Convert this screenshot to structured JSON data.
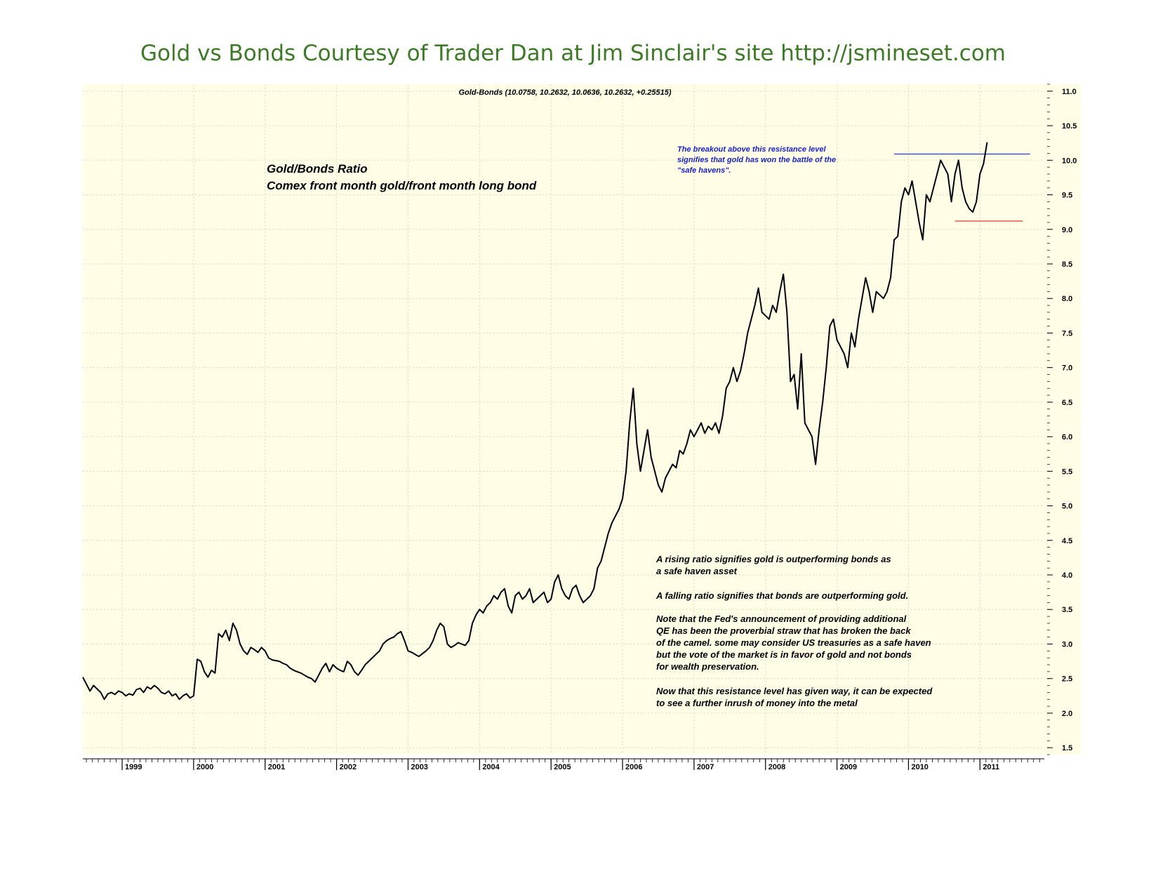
{
  "page": {
    "title": "Gold vs Bonds Courtesy of Trader Dan at Jim Sinclair's site http://jsmineset.com"
  },
  "chart_data": {
    "type": "line",
    "header": "Gold-Bonds (10.0758, 10.2632, 10.0636, 10.2632, +0.25515)",
    "title_lines": [
      "Gold/Bonds Ratio",
      "Comex front month gold/front month long bond"
    ],
    "ylim": [
      1.4,
      11.1
    ],
    "xlim": [
      1998.45,
      2011.9
    ],
    "y_ticks": [
      "1.5",
      "2.0",
      "2.5",
      "3.0",
      "3.5",
      "4.0",
      "4.5",
      "5.0",
      "5.5",
      "6.0",
      "6.5",
      "7.0",
      "7.5",
      "8.0",
      "8.5",
      "9.0",
      "9.5",
      "10.0",
      "10.5",
      "11.0"
    ],
    "x_ticks": [
      "1999",
      "2000",
      "2001",
      "2002",
      "2003",
      "2004",
      "2005",
      "2006",
      "2007",
      "2008",
      "2009",
      "2010",
      "2011"
    ],
    "grid": true,
    "colors": {
      "background": "#fffde6",
      "line": "#000000",
      "resistance": "#1f2fbf",
      "support": "#e02020",
      "title": "#3d7a25",
      "annotation_blue": "#1a22cc"
    },
    "resistance_line": {
      "x": [
        2009.8,
        2011.7
      ],
      "y": 10.09
    },
    "support_line": {
      "x": [
        2010.65,
        2011.6
      ],
      "y": 9.12
    },
    "annotations": {
      "breakout": [
        "The breakout above this resistance level",
        "signifies that gold has won the battle of the",
        "\"safe havens\"."
      ],
      "rising": [
        "A rising ratio signifies gold is outperforming bonds as",
        "a safe haven asset"
      ],
      "falling": [
        "A falling ratio signifies that bonds are outperforming gold."
      ],
      "note": [
        "Note that the Fed's announcement of providing additional",
        "QE has been the proverbial straw that has broken the back",
        "of the camel. some may consider US treasuries as a safe haven",
        "but the vote of the market is in favor of gold and not bonds",
        "for wealth preservation."
      ],
      "now": [
        "Now that this resistance level has given way, it can be expected",
        "to see a further inrush of money into the metal"
      ]
    },
    "series": [
      {
        "x": [
          1998.45,
          1998.5,
          1998.55,
          1998.6,
          1998.65,
          1998.7,
          1998.75,
          1998.8,
          1998.85,
          1998.9,
          1998.95,
          1999.0,
          1999.05,
          1999.1,
          1999.15,
          1999.2,
          1999.25,
          1999.3,
          1999.35,
          1999.4,
          1999.45,
          1999.5,
          1999.55,
          1999.6,
          1999.65,
          1999.7,
          1999.75,
          1999.8,
          1999.85,
          1999.9,
          1999.95,
          2000.0,
          2000.05,
          2000.1,
          2000.15,
          2000.2,
          2000.25,
          2000.3,
          2000.35,
          2000.4,
          2000.45,
          2000.5,
          2000.55,
          2000.6,
          2000.65,
          2000.7,
          2000.75,
          2000.8,
          2000.85,
          2000.9,
          2000.95,
          2001.0,
          2001.05,
          2001.1,
          2001.15,
          2001.2,
          2001.25,
          2001.3,
          2001.35,
          2001.4,
          2001.45,
          2001.5,
          2001.55,
          2001.6,
          2001.65,
          2001.7,
          2001.75,
          2001.8,
          2001.85,
          2001.9,
          2001.95,
          2002.0,
          2002.05,
          2002.1,
          2002.15,
          2002.2,
          2002.25,
          2002.3,
          2002.35,
          2002.4,
          2002.45,
          2002.5,
          2002.55,
          2002.6,
          2002.65,
          2002.7,
          2002.75,
          2002.8,
          2002.85,
          2002.9,
          2002.95,
          2003.0,
          2003.05,
          2003.1,
          2003.15,
          2003.2,
          2003.25,
          2003.3,
          2003.35,
          2003.4,
          2003.45,
          2003.5,
          2003.55,
          2003.6,
          2003.65,
          2003.7,
          2003.75,
          2003.8,
          2003.85,
          2003.9,
          2003.95,
          2004.0,
          2004.05,
          2004.1,
          2004.15,
          2004.2,
          2004.25,
          2004.3,
          2004.35,
          2004.4,
          2004.45,
          2004.5,
          2004.55,
          2004.6,
          2004.65,
          2004.7,
          2004.75,
          2004.8,
          2004.85,
          2004.9,
          2004.95,
          2005.0,
          2005.05,
          2005.1,
          2005.15,
          2005.2,
          2005.25,
          2005.3,
          2005.35,
          2005.4,
          2005.45,
          2005.5,
          2005.55,
          2005.6,
          2005.65,
          2005.7,
          2005.75,
          2005.8,
          2005.85,
          2005.9,
          2005.95,
          2006.0,
          2006.05,
          2006.1,
          2006.15,
          2006.2,
          2006.25,
          2006.3,
          2006.35,
          2006.4,
          2006.45,
          2006.5,
          2006.55,
          2006.6,
          2006.65,
          2006.7,
          2006.75,
          2006.8,
          2006.85,
          2006.9,
          2006.95,
          2007.0,
          2007.05,
          2007.1,
          2007.15,
          2007.2,
          2007.25,
          2007.3,
          2007.35,
          2007.4,
          2007.45,
          2007.5,
          2007.55,
          2007.6,
          2007.65,
          2007.7,
          2007.75,
          2007.8,
          2007.85,
          2007.9,
          2007.95,
          2008.0,
          2008.05,
          2008.1,
          2008.15,
          2008.2,
          2008.25,
          2008.3,
          2008.35,
          2008.4,
          2008.45,
          2008.5,
          2008.55,
          2008.6,
          2008.65,
          2008.7,
          2008.75,
          2008.8,
          2008.85,
          2008.9,
          2008.95,
          2009.0,
          2009.05,
          2009.1,
          2009.15,
          2009.2,
          2009.25,
          2009.3,
          2009.35,
          2009.4,
          2009.45,
          2009.5,
          2009.55,
          2009.6,
          2009.65,
          2009.7,
          2009.75,
          2009.8,
          2009.85,
          2009.9,
          2009.95,
          2010.0,
          2010.05,
          2010.1,
          2010.15,
          2010.2,
          2010.25,
          2010.3,
          2010.35,
          2010.4,
          2010.45,
          2010.5,
          2010.55,
          2010.6,
          2010.65,
          2010.7,
          2010.75,
          2010.8,
          2010.85,
          2010.9,
          2010.95,
          2011.0,
          2011.05,
          2011.1
        ],
        "values": [
          2.52,
          2.42,
          2.32,
          2.4,
          2.35,
          2.3,
          2.2,
          2.28,
          2.3,
          2.27,
          2.32,
          2.3,
          2.25,
          2.28,
          2.26,
          2.34,
          2.36,
          2.3,
          2.38,
          2.35,
          2.4,
          2.36,
          2.3,
          2.28,
          2.32,
          2.25,
          2.28,
          2.2,
          2.25,
          2.28,
          2.22,
          2.25,
          2.78,
          2.75,
          2.6,
          2.52,
          2.62,
          2.58,
          3.15,
          3.1,
          3.2,
          3.05,
          3.3,
          3.2,
          3.0,
          2.9,
          2.85,
          2.95,
          2.92,
          2.88,
          2.95,
          2.9,
          2.8,
          2.77,
          2.76,
          2.75,
          2.72,
          2.7,
          2.65,
          2.62,
          2.6,
          2.58,
          2.55,
          2.52,
          2.5,
          2.45,
          2.55,
          2.65,
          2.72,
          2.6,
          2.7,
          2.65,
          2.62,
          2.6,
          2.75,
          2.7,
          2.6,
          2.55,
          2.62,
          2.7,
          2.75,
          2.8,
          2.85,
          2.9,
          3.0,
          3.05,
          3.08,
          3.1,
          3.15,
          3.18,
          3.05,
          2.9,
          2.88,
          2.85,
          2.82,
          2.86,
          2.9,
          2.95,
          3.05,
          3.2,
          3.3,
          3.25,
          3.0,
          2.95,
          2.98,
          3.02,
          3.0,
          2.98,
          3.05,
          3.3,
          3.42,
          3.5,
          3.45,
          3.55,
          3.6,
          3.7,
          3.65,
          3.75,
          3.8,
          3.55,
          3.45,
          3.7,
          3.75,
          3.65,
          3.7,
          3.8,
          3.6,
          3.65,
          3.7,
          3.75,
          3.6,
          3.65,
          3.9,
          4.0,
          3.8,
          3.7,
          3.65,
          3.8,
          3.85,
          3.7,
          3.6,
          3.65,
          3.7,
          3.8,
          4.1,
          4.2,
          4.4,
          4.6,
          4.75,
          4.85,
          4.95,
          5.1,
          5.5,
          6.2,
          6.7,
          5.9,
          5.5,
          5.8,
          6.1,
          5.7,
          5.5,
          5.3,
          5.2,
          5.4,
          5.5,
          5.6,
          5.55,
          5.8,
          5.75,
          5.9,
          6.1,
          6.0,
          6.1,
          6.2,
          6.05,
          6.15,
          6.1,
          6.2,
          6.05,
          6.3,
          6.7,
          6.8,
          7.0,
          6.8,
          6.95,
          7.2,
          7.5,
          7.7,
          7.9,
          8.15,
          7.8,
          7.75,
          7.7,
          7.9,
          7.8,
          8.1,
          8.35,
          7.8,
          6.8,
          6.9,
          6.4,
          7.2,
          6.2,
          6.1,
          6.0,
          5.6,
          6.1,
          6.5,
          7.0,
          7.6,
          7.7,
          7.4,
          7.3,
          7.2,
          7.0,
          7.5,
          7.3,
          7.7,
          8.0,
          8.3,
          8.1,
          7.8,
          8.1,
          8.05,
          8.0,
          8.1,
          8.3,
          8.85,
          8.9,
          9.4,
          9.6,
          9.5,
          9.7,
          9.4,
          9.1,
          8.85,
          9.5,
          9.4,
          9.6,
          9.8,
          10.0,
          9.9,
          9.8,
          9.4,
          9.8,
          10.0,
          9.6,
          9.4,
          9.3,
          9.25,
          9.4,
          9.8,
          9.95,
          10.26
        ]
      }
    ]
  }
}
